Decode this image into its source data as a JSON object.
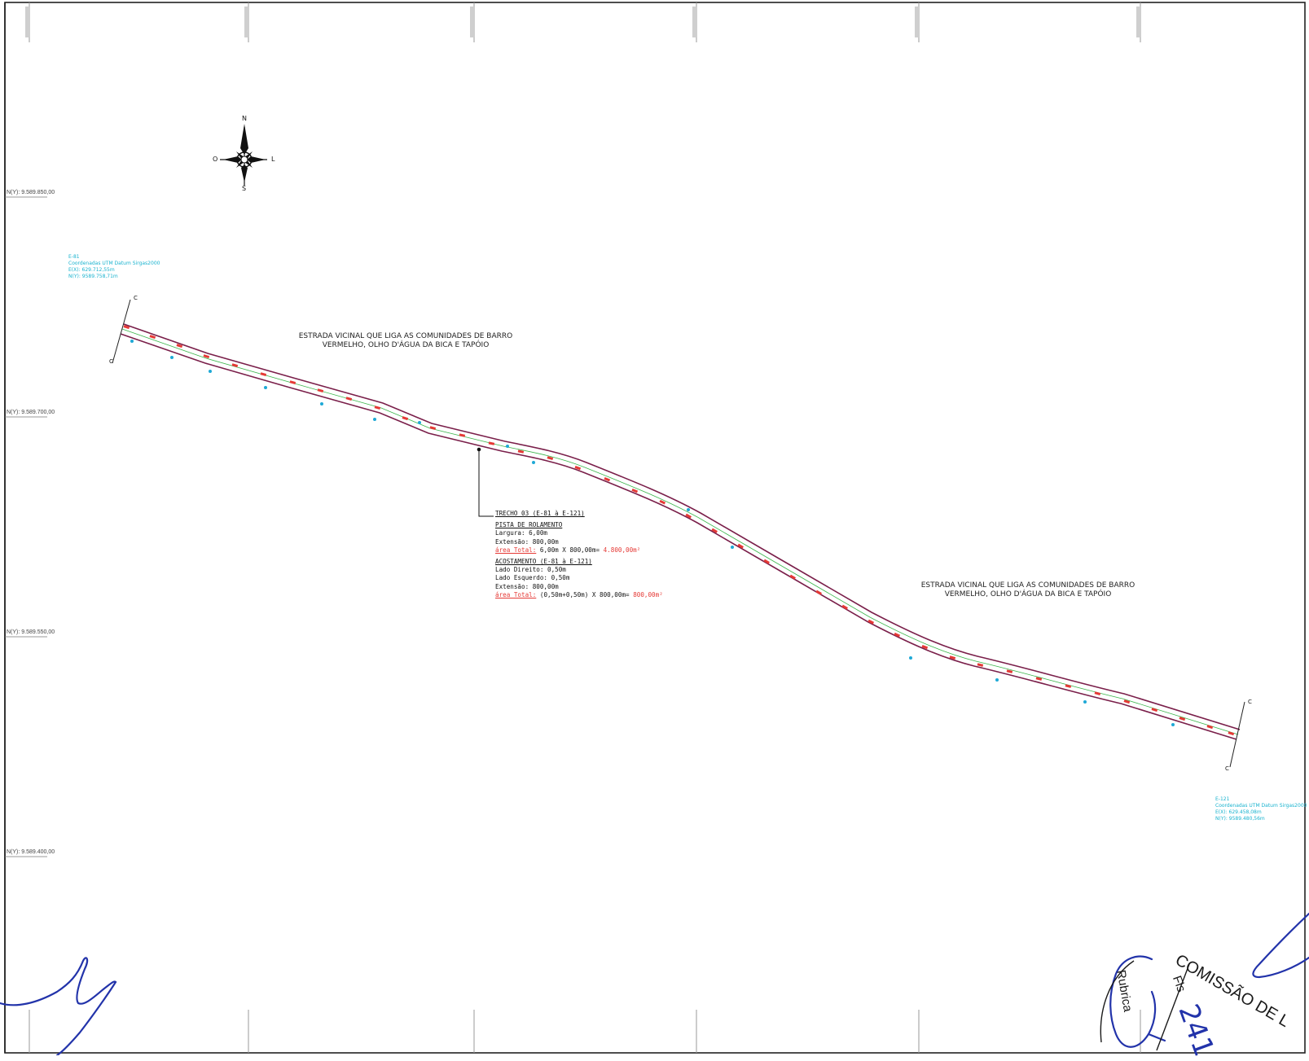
{
  "grid_labels": [
    "N(Y): 9.589.850,00",
    "N(Y): 9.589.700,00",
    "N(Y): 9.589.550,00",
    "N(Y): 9.589.400,00"
  ],
  "compass": {
    "north": "N",
    "south": "S",
    "east": "L",
    "west": "O"
  },
  "road_label_1": {
    "line1": "ESTRADA VICINAL QUE LIGA AS COMUNIDADES DE BARRO",
    "line2": "VERMELHO, OLHO D'ÁGUA DA BICA E TAPÓIO"
  },
  "road_label_2": {
    "line1": "ESTRADA VICINAL QUE LIGA AS COMUNIDADES DE BARRO",
    "line2": "VERMELHO, OLHO D'ÁGUA DA BICA E TAPÓIO"
  },
  "coord_start": {
    "line1": "E-81",
    "line2": "Coordenadas UTM Datum Sirgas2000",
    "line3": "E(X): 629.712,55m",
    "line4": "N(Y): 9589.758,71m"
  },
  "coord_end": {
    "line1": "E-121",
    "line2": "Coordenadas UTM Datum Sirgas2000",
    "line3": "E(X): 629.458,08m",
    "line4": "N(Y): 9589.480,56m"
  },
  "info": {
    "trecho": "TRECHO 03 (E-81 à E-121)",
    "pista_title": "PISTA DE ROLAMENTO",
    "largura": "Largura: 6,00m",
    "extensao1": "Extensão: 800,00m",
    "area1_label": "área Total:",
    "area1_calc": "6,00m X 800,00m=",
    "area1_value": "4.800,00m²",
    "acost_title": "ACOSTAMENTO (E-81 à E-121)",
    "lado_direito": "Lado Direito: 0,50m",
    "lado_esquerdo": "Lado Esquerdo: 0,50m",
    "extensao2": "Extensão: 800,00m",
    "area2_label": "área Total:",
    "area2_calc": "(0,50m+0,50m) X 800,00m=",
    "area2_value": "800,00m²"
  },
  "section_marks": {
    "start_top": "C",
    "start_bottom": "C",
    "end_top": "C",
    "end_bottom": "C"
  },
  "stamp": {
    "arc_text": "COMISSÃO DE L",
    "fls": "Fls",
    "page_number": "241",
    "rubrica": "Rubrica"
  },
  "colors": {
    "road_edge": "#7a1f4a",
    "road_center": "#39b54a",
    "station": "#e53935",
    "point": "#1fa9d6",
    "ink": "#2233aa"
  }
}
